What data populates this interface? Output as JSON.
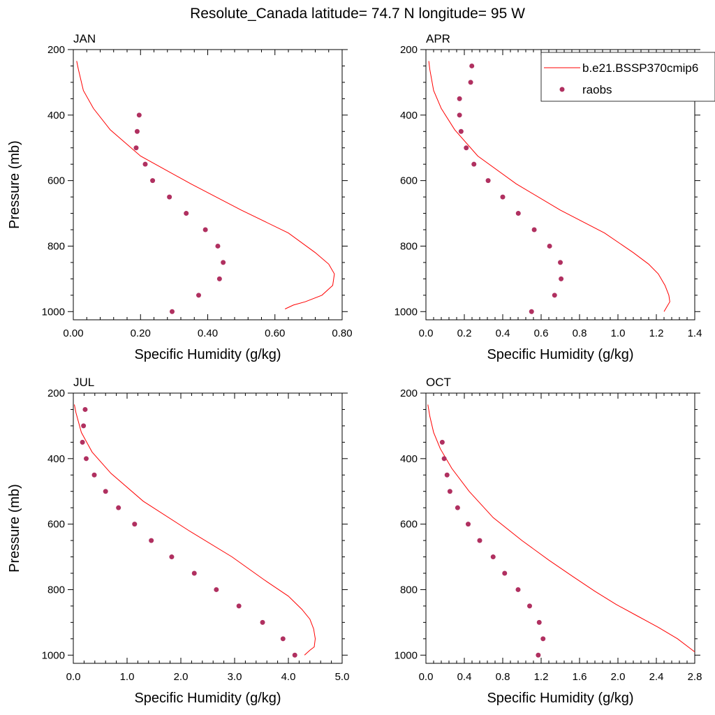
{
  "title": "Resolute_Canada  latitude= 74.7 N longitude= 95 W",
  "legend": {
    "placement": "top-right of APR panel",
    "entries": [
      {
        "label": "b.e21.BSSP370cmip6",
        "kind": "line",
        "color": "#ff0000"
      },
      {
        "label": "raobs",
        "kind": "marker",
        "color": "#b03060"
      }
    ]
  },
  "colors": {
    "model": "#ff0000",
    "obs": "#b03060",
    "axis": "#000000"
  },
  "chart_data": [
    {
      "type": "line",
      "title": "JAN",
      "xlabel": "Specific Humidity (g/kg)",
      "ylabel": "Pressure (mb)",
      "xlim": [
        0,
        0.8
      ],
      "ylim": [
        1025,
        200
      ],
      "xticks": [
        0,
        0.2,
        0.4,
        0.6,
        0.8
      ],
      "xticklabels": [
        "0.00",
        "0.20",
        "0.40",
        "0.60",
        "0.80"
      ],
      "yticks": [
        200,
        400,
        600,
        800,
        1000
      ],
      "yticklabels": [
        "200",
        "400",
        "600",
        "800",
        "1000"
      ],
      "grid": false,
      "series": [
        {
          "name": "b.e21.BSSP370cmip6",
          "kind": "line",
          "x": [
            0.01,
            0.015,
            0.03,
            0.06,
            0.11,
            0.2,
            0.35,
            0.5,
            0.64,
            0.72,
            0.76,
            0.777,
            0.772,
            0.74,
            0.69,
            0.655,
            0.63
          ],
          "y": [
            235,
            260,
            325,
            380,
            445,
            525,
            610,
            690,
            760,
            820,
            855,
            885,
            920,
            950,
            970,
            980,
            992
          ]
        },
        {
          "name": "raobs",
          "kind": "scatter",
          "x": [
            0.196,
            0.19,
            0.187,
            0.214,
            0.236,
            0.286,
            0.336,
            0.393,
            0.43,
            0.446,
            0.435,
            0.373,
            0.294
          ],
          "y": [
            400,
            450,
            500,
            550,
            600,
            650,
            700,
            750,
            800,
            850,
            900,
            950,
            1000
          ]
        }
      ]
    },
    {
      "type": "line",
      "title": "APR",
      "xlabel": "Specific Humidity (g/kg)",
      "ylabel": "",
      "xlim": [
        0,
        1.4
      ],
      "ylim": [
        1025,
        200
      ],
      "xticks": [
        0,
        0.2,
        0.4,
        0.6,
        0.8,
        1.0,
        1.2,
        1.4
      ],
      "xticklabels": [
        "0.0",
        "0.2",
        "0.4",
        "0.6",
        "0.8",
        "1.0",
        "1.2",
        "1.4"
      ],
      "yticks": [
        200,
        400,
        600,
        800,
        1000
      ],
      "yticklabels": [
        "200",
        "400",
        "600",
        "800",
        "1000"
      ],
      "grid": false,
      "series": [
        {
          "name": "b.e21.BSSP370cmip6",
          "kind": "line",
          "x": [
            0.015,
            0.02,
            0.04,
            0.08,
            0.15,
            0.27,
            0.47,
            0.7,
            0.93,
            1.08,
            1.16,
            1.21,
            1.245,
            1.265,
            1.27,
            1.255,
            1.24
          ],
          "y": [
            235,
            260,
            325,
            380,
            445,
            525,
            610,
            690,
            760,
            820,
            855,
            885,
            920,
            950,
            970,
            985,
            1000
          ]
        },
        {
          "name": "raobs",
          "kind": "scatter",
          "x": [
            0.239,
            0.233,
            0.175,
            0.175,
            0.183,
            0.21,
            0.25,
            0.324,
            0.4,
            0.481,
            0.564,
            0.644,
            0.7,
            0.704,
            0.67,
            0.55
          ],
          "y": [
            250,
            300,
            350,
            400,
            450,
            500,
            550,
            600,
            650,
            700,
            750,
            800,
            850,
            900,
            950,
            1000
          ]
        }
      ]
    },
    {
      "type": "line",
      "title": "JUL",
      "xlabel": "Specific Humidity (g/kg)",
      "ylabel": "Pressure (mb)",
      "xlim": [
        0,
        5.0
      ],
      "ylim": [
        1025,
        200
      ],
      "xticks": [
        0,
        1,
        2,
        3,
        4,
        5
      ],
      "xticklabels": [
        "0.0",
        "1.0",
        "2.0",
        "3.0",
        "4.0",
        "5.0"
      ],
      "yticks": [
        200,
        400,
        600,
        800,
        1000
      ],
      "yticklabels": [
        "200",
        "400",
        "600",
        "800",
        "1000"
      ],
      "grid": false,
      "series": [
        {
          "name": "b.e21.BSSP370cmip6",
          "kind": "line",
          "x": [
            0.02,
            0.05,
            0.15,
            0.35,
            0.7,
            1.3,
            2.15,
            2.95,
            3.55,
            4.0,
            4.25,
            4.4,
            4.47,
            4.5,
            4.48,
            4.4,
            4.3
          ],
          "y": [
            235,
            260,
            320,
            380,
            445,
            530,
            620,
            700,
            770,
            820,
            860,
            890,
            920,
            950,
            975,
            985,
            1000
          ]
        },
        {
          "name": "raobs",
          "kind": "scatter",
          "x": [
            0.22,
            0.19,
            0.17,
            0.24,
            0.39,
            0.6,
            0.84,
            1.14,
            1.45,
            1.83,
            2.25,
            2.66,
            3.08,
            3.52,
            3.9,
            4.12
          ],
          "y": [
            250,
            300,
            350,
            400,
            450,
            500,
            550,
            600,
            650,
            700,
            750,
            800,
            850,
            900,
            950,
            1000
          ]
        }
      ]
    },
    {
      "type": "line",
      "title": "OCT",
      "xlabel": "Specific Humidity (g/kg)",
      "ylabel": "",
      "xlim": [
        0,
        2.8
      ],
      "ylim": [
        1025,
        200
      ],
      "xticks": [
        0,
        0.4,
        0.8,
        1.2,
        1.6,
        2.0,
        2.4,
        2.8
      ],
      "xticklabels": [
        "0.0",
        "0.4",
        "0.8",
        "1.2",
        "1.6",
        "2.0",
        "2.4",
        "2.8"
      ],
      "yticks": [
        200,
        400,
        600,
        800,
        1000
      ],
      "yticklabels": [
        "200",
        "400",
        "600",
        "800",
        "1000"
      ],
      "grid": false,
      "series": [
        {
          "name": "b.e21.BSSP370cmip6",
          "kind": "line",
          "x": [
            0.02,
            0.04,
            0.08,
            0.15,
            0.27,
            0.45,
            0.7,
            1.0,
            1.28,
            1.53,
            1.76,
            1.98,
            2.2,
            2.42,
            2.62,
            2.8
          ],
          "y": [
            235,
            270,
            320,
            370,
            430,
            500,
            580,
            650,
            710,
            760,
            805,
            845,
            880,
            915,
            950,
            990
          ]
        },
        {
          "name": "raobs",
          "kind": "scatter",
          "x": [
            0.17,
            0.19,
            0.22,
            0.25,
            0.33,
            0.44,
            0.56,
            0.7,
            0.82,
            0.96,
            1.08,
            1.18,
            1.22,
            1.17
          ],
          "y": [
            350,
            400,
            450,
            500,
            550,
            600,
            650,
            700,
            750,
            800,
            850,
            900,
            950,
            1000
          ]
        }
      ]
    }
  ]
}
